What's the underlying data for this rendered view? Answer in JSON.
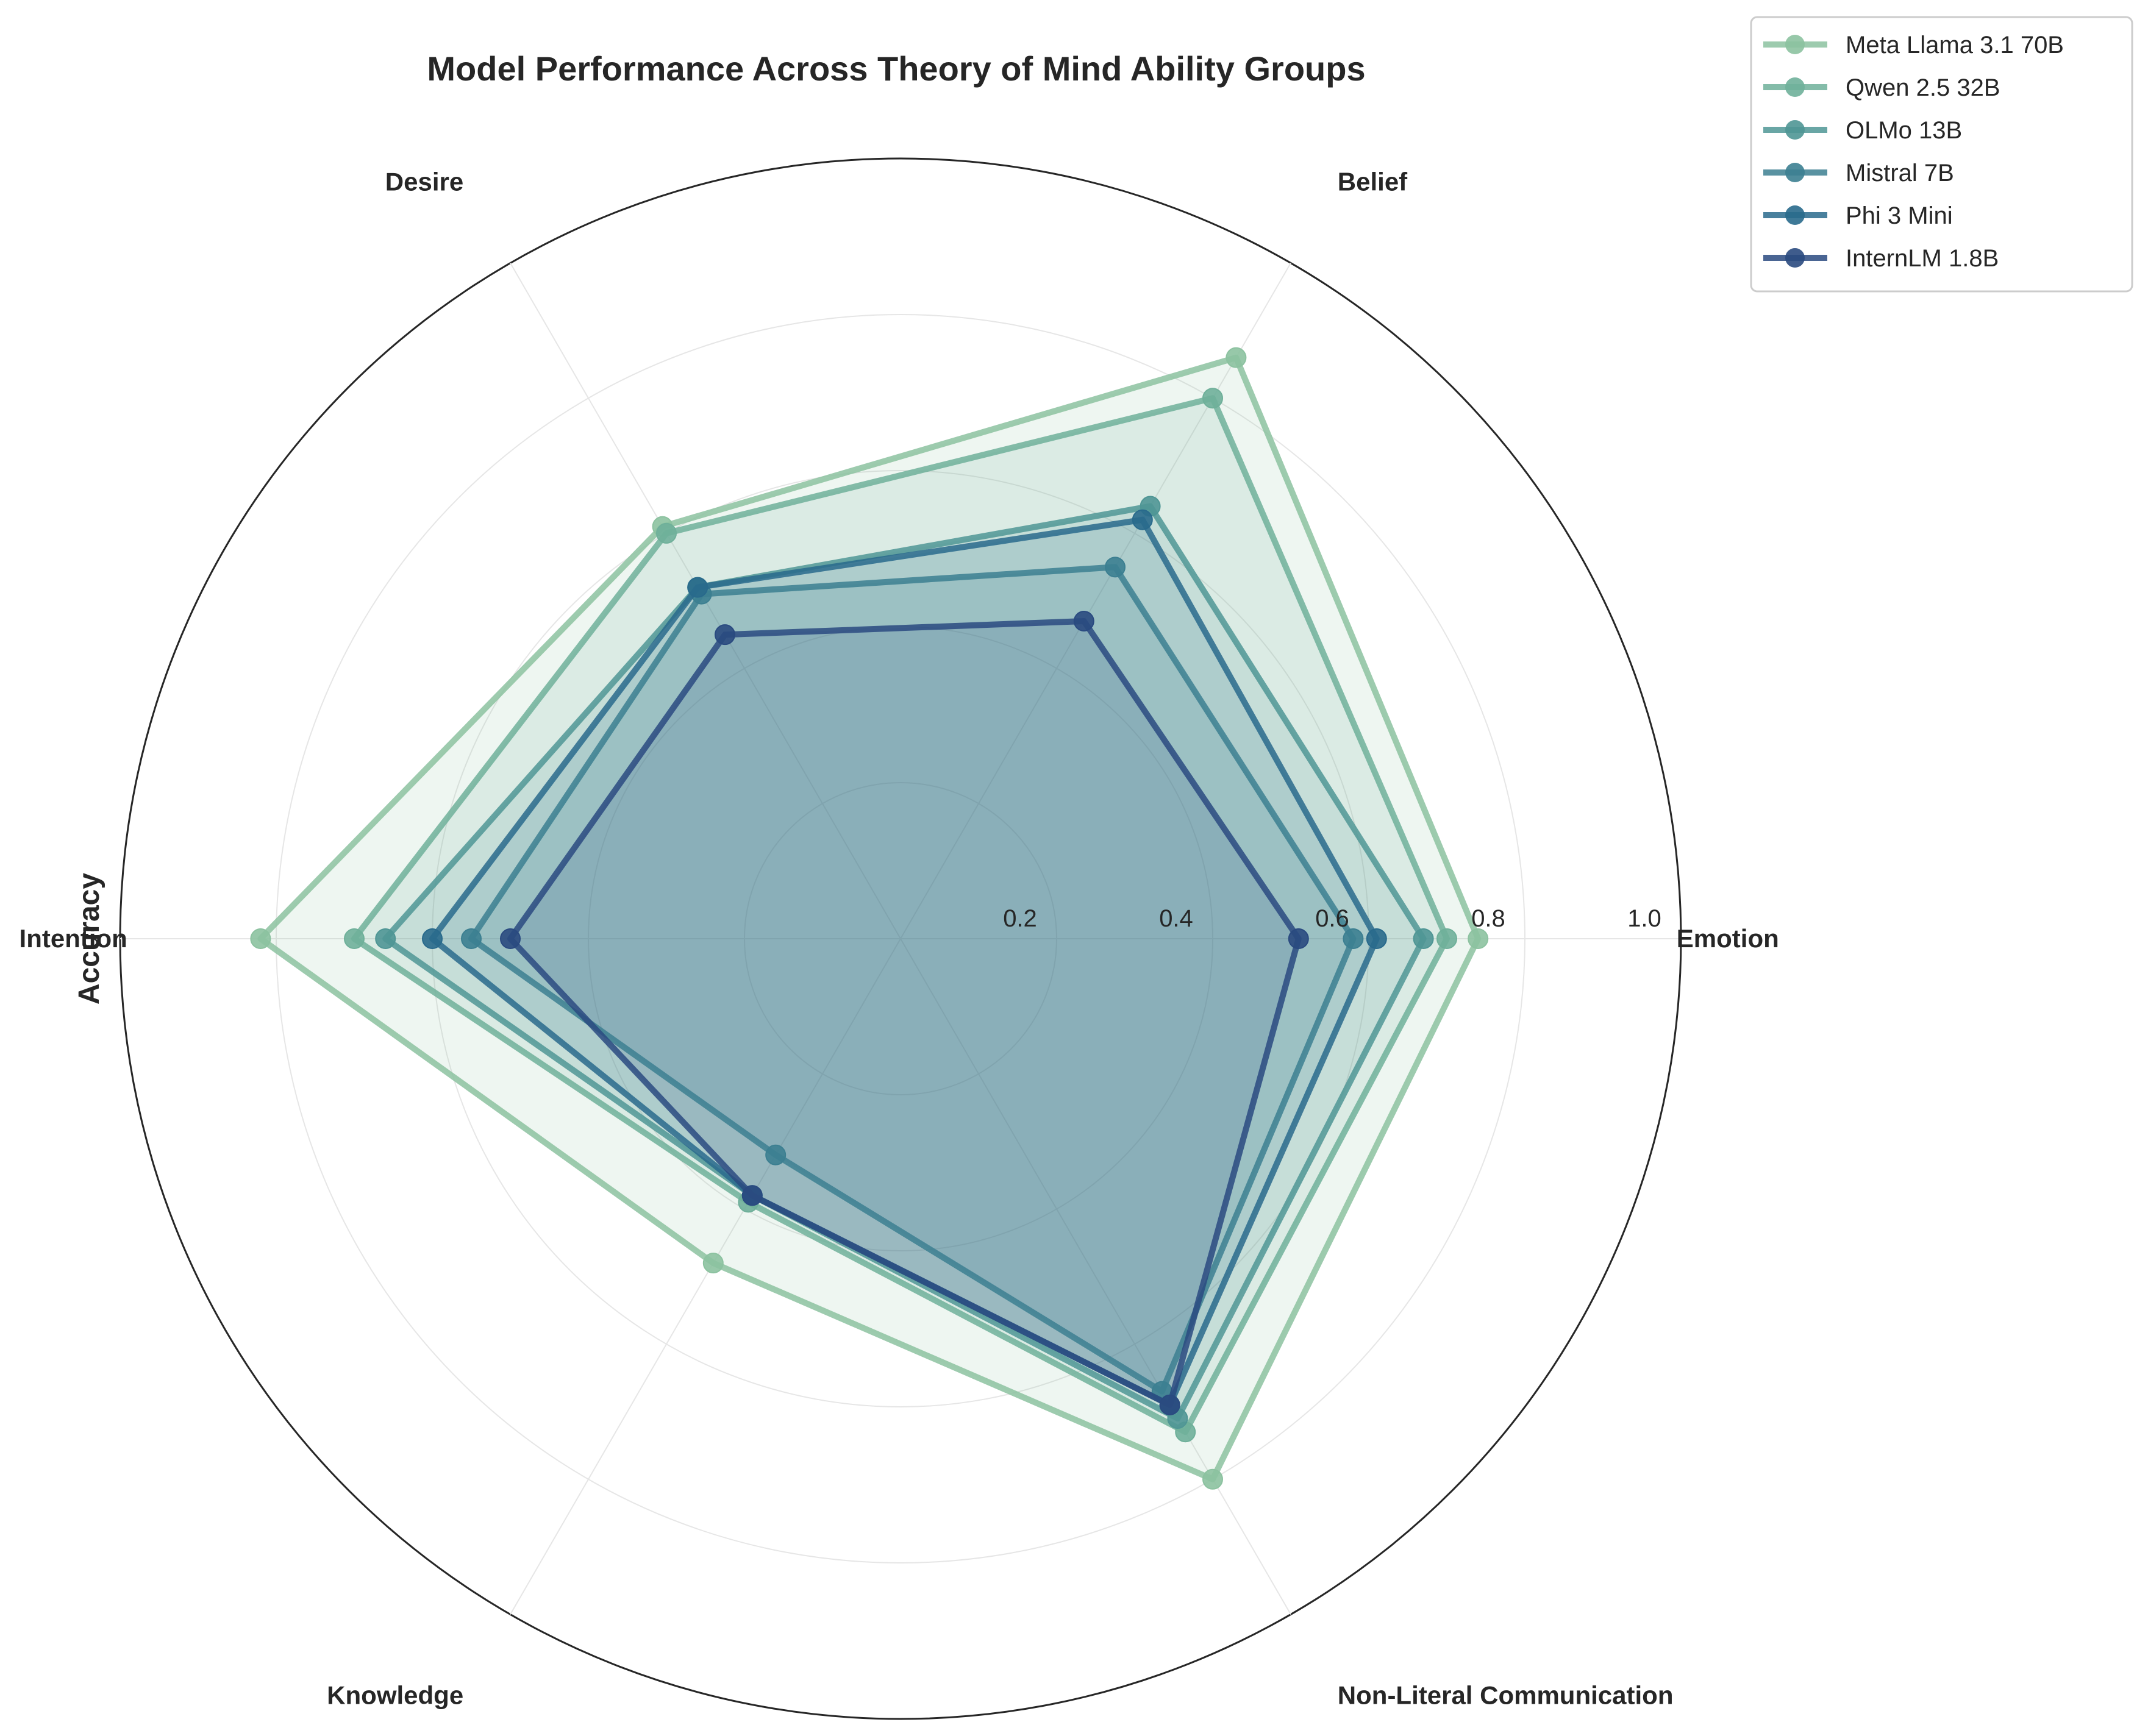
{
  "chart_data": {
    "type": "radar",
    "title": "Model Performance Across Theory of Mind Ability Groups",
    "ylabel": "Accuracy",
    "categories": [
      "Emotion",
      "Belief",
      "Desire",
      "Intention",
      "Knowledge",
      "Non-Literal Communication"
    ],
    "rticks": [
      0.2,
      0.4,
      0.6,
      0.8,
      1.0
    ],
    "rtick_labels": [
      "0.2",
      "0.4",
      "0.6",
      "0.8",
      "1.0"
    ],
    "rlim": [
      0,
      1.0
    ],
    "grid": true,
    "legend_position": "top-right",
    "series": [
      {
        "name": "Meta Llama 3.1 70B",
        "color": "#8cc2a0",
        "values": [
          0.74,
          0.86,
          0.61,
          0.82,
          0.48,
          0.8
        ]
      },
      {
        "name": "Qwen 2.5 32B",
        "color": "#6fb09a",
        "values": [
          0.7,
          0.8,
          0.6,
          0.7,
          0.39,
          0.73
        ]
      },
      {
        "name": "OLMo 13B",
        "color": "#4f9695",
        "values": [
          0.67,
          0.64,
          0.52,
          0.66,
          0.38,
          0.71
        ]
      },
      {
        "name": "Mistral 7B",
        "color": "#3c7f91",
        "values": [
          0.58,
          0.55,
          0.51,
          0.55,
          0.32,
          0.67
        ]
      },
      {
        "name": "Phi 3 Mini",
        "color": "#296a8c",
        "values": [
          0.61,
          0.62,
          0.52,
          0.6,
          0.38,
          0.69
        ]
      },
      {
        "name": "InternLM 1.8B",
        "color": "#2a4a80",
        "values": [
          0.51,
          0.47,
          0.45,
          0.5,
          0.38,
          0.69
        ]
      }
    ]
  }
}
